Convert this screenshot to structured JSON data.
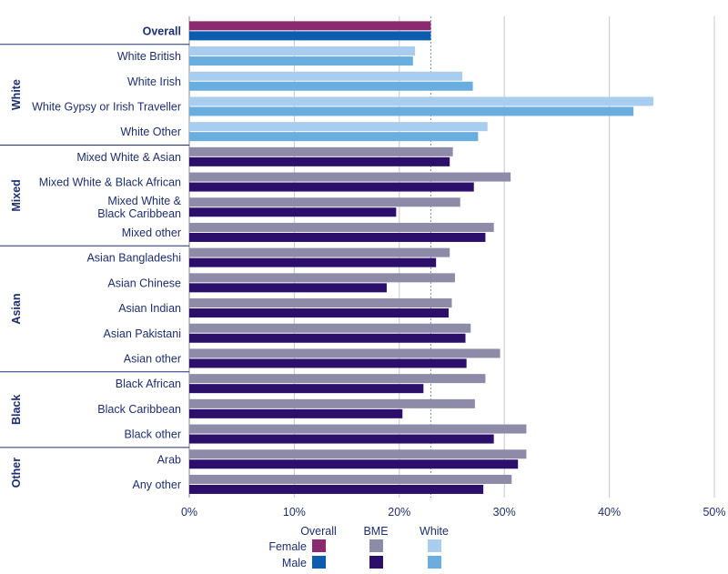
{
  "chart_data": {
    "type": "bar",
    "orientation": "horizontal",
    "title": "",
    "xlabel": "",
    "ylabel": "",
    "xlim": [
      0,
      50
    ],
    "x_ticks": [
      0,
      10,
      20,
      30,
      40,
      50
    ],
    "x_tick_labels": [
      "0%",
      "10%",
      "20%",
      "30%",
      "40%",
      "50%"
    ],
    "reference_line": 23,
    "grid": true,
    "categories": [
      {
        "label": "Overall",
        "group": "",
        "kind": "overall",
        "female": 23.0,
        "male": 23.0
      },
      {
        "label": "White British",
        "group": "White",
        "kind": "white",
        "female": 21.5,
        "male": 21.3
      },
      {
        "label": "White Irish",
        "group": "White",
        "kind": "white",
        "female": 26.0,
        "male": 27.0
      },
      {
        "label": "White Gypsy or Irish Traveller",
        "group": "White",
        "kind": "white",
        "female": 44.2,
        "male": 42.3
      },
      {
        "label": "White Other",
        "group": "White",
        "kind": "white",
        "female": 28.4,
        "male": 27.5
      },
      {
        "label": "Mixed White & Asian",
        "group": "Mixed",
        "kind": "bme",
        "female": 25.1,
        "male": 24.8
      },
      {
        "label": "Mixed White & Black African",
        "group": "Mixed",
        "kind": "bme",
        "female": 30.6,
        "male": 27.1
      },
      {
        "label": "Mixed White & \nBlack Caribbean",
        "group": "Mixed",
        "kind": "bme",
        "female": 25.8,
        "male": 19.7
      },
      {
        "label": "Mixed other",
        "group": "Mixed",
        "kind": "bme",
        "female": 29.0,
        "male": 28.2
      },
      {
        "label": "Asian Bangladeshi",
        "group": "Asian",
        "kind": "bme",
        "female": 24.8,
        "male": 23.5
      },
      {
        "label": "Asian Chinese",
        "group": "Asian",
        "kind": "bme",
        "female": 25.3,
        "male": 18.8
      },
      {
        "label": "Asian Indian",
        "group": "Asian",
        "kind": "bme",
        "female": 25.0,
        "male": 24.7
      },
      {
        "label": "Asian Pakistani",
        "group": "Asian",
        "kind": "bme",
        "female": 26.8,
        "male": 26.3
      },
      {
        "label": "Asian other",
        "group": "Asian",
        "kind": "bme",
        "female": 29.6,
        "male": 26.4
      },
      {
        "label": "Black African",
        "group": "Black",
        "kind": "bme",
        "female": 28.2,
        "male": 22.3
      },
      {
        "label": "Black Caribbean",
        "group": "Black",
        "kind": "bme",
        "female": 27.2,
        "male": 20.3
      },
      {
        "label": "Black other",
        "group": "Black",
        "kind": "bme",
        "female": 32.1,
        "male": 29.0
      },
      {
        "label": "Arab",
        "group": "Other",
        "kind": "bme",
        "female": 32.1,
        "male": 31.3
      },
      {
        "label": "Any other",
        "group": "Other",
        "kind": "bme",
        "female": 30.7,
        "male": 28.0
      }
    ],
    "groups": [
      "White",
      "Mixed",
      "Asian",
      "Black",
      "Other"
    ],
    "legend": {
      "columns": [
        "Overall",
        "BME",
        "White"
      ],
      "rows": [
        "Female",
        "Male"
      ]
    },
    "colors": {
      "overall": {
        "female": "#8b2a6e",
        "male": "#0b5db0"
      },
      "bme": {
        "female": "#8d8ba8",
        "male": "#2c0f6b"
      },
      "white": {
        "female": "#a8cdee",
        "male": "#6aaee0"
      }
    }
  }
}
